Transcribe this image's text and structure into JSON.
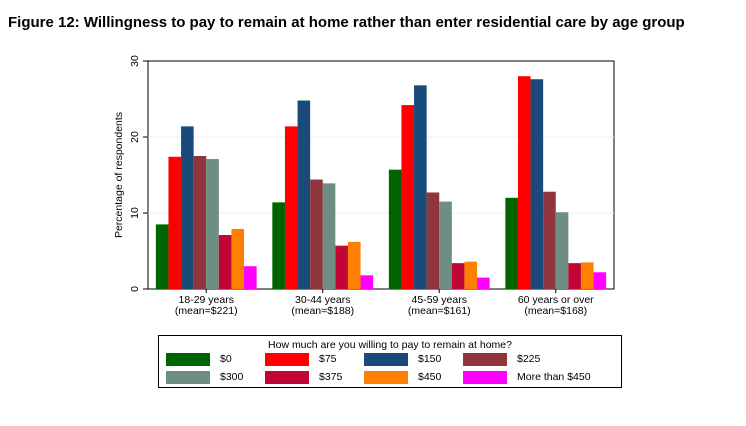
{
  "figure_title": "Figure 12: Willingness to pay to remain at home rather than enter residential care by age group",
  "legend_title": "How much are you willing to pay to remain at home?",
  "chart_data": {
    "type": "bar",
    "title": "Figure 12: Willingness to pay to remain at home rather than enter residential care by age group",
    "xlabel": "",
    "ylabel": "Percentage of respondents",
    "ylim": [
      0,
      30
    ],
    "yticks": [
      0,
      10,
      20,
      30
    ],
    "grid": true,
    "legend_position": "bottom",
    "categories": [
      [
        "18-29 years",
        "(mean=$221)"
      ],
      [
        "30-44 years",
        "(mean=$188)"
      ],
      [
        "45-59 years",
        "(mean=$161)"
      ],
      [
        "60 years or over",
        "(mean=$168)"
      ]
    ],
    "series": [
      {
        "name": "$0",
        "color": "#006400",
        "values": [
          8.5,
          11.4,
          15.7,
          12.0
        ]
      },
      {
        "name": "$75",
        "color": "#FF0000",
        "values": [
          17.4,
          21.4,
          24.2,
          28.0
        ]
      },
      {
        "name": "$150",
        "color": "#1A4A7A",
        "values": [
          21.4,
          24.8,
          26.8,
          27.6
        ]
      },
      {
        "name": "$225",
        "color": "#90353B",
        "values": [
          17.5,
          14.4,
          12.7,
          12.8
        ]
      },
      {
        "name": "$300",
        "color": "#6E8E84",
        "values": [
          17.1,
          13.9,
          11.5,
          10.1
        ]
      },
      {
        "name": "$375",
        "color": "#C10534",
        "values": [
          7.1,
          5.7,
          3.4,
          3.4
        ]
      },
      {
        "name": "$450",
        "color": "#FF7F00",
        "values": [
          7.9,
          6.2,
          3.6,
          3.5
        ]
      },
      {
        "name": "More than $450",
        "color": "#FF00FF",
        "values": [
          3.0,
          1.8,
          1.5,
          2.2
        ]
      }
    ]
  }
}
